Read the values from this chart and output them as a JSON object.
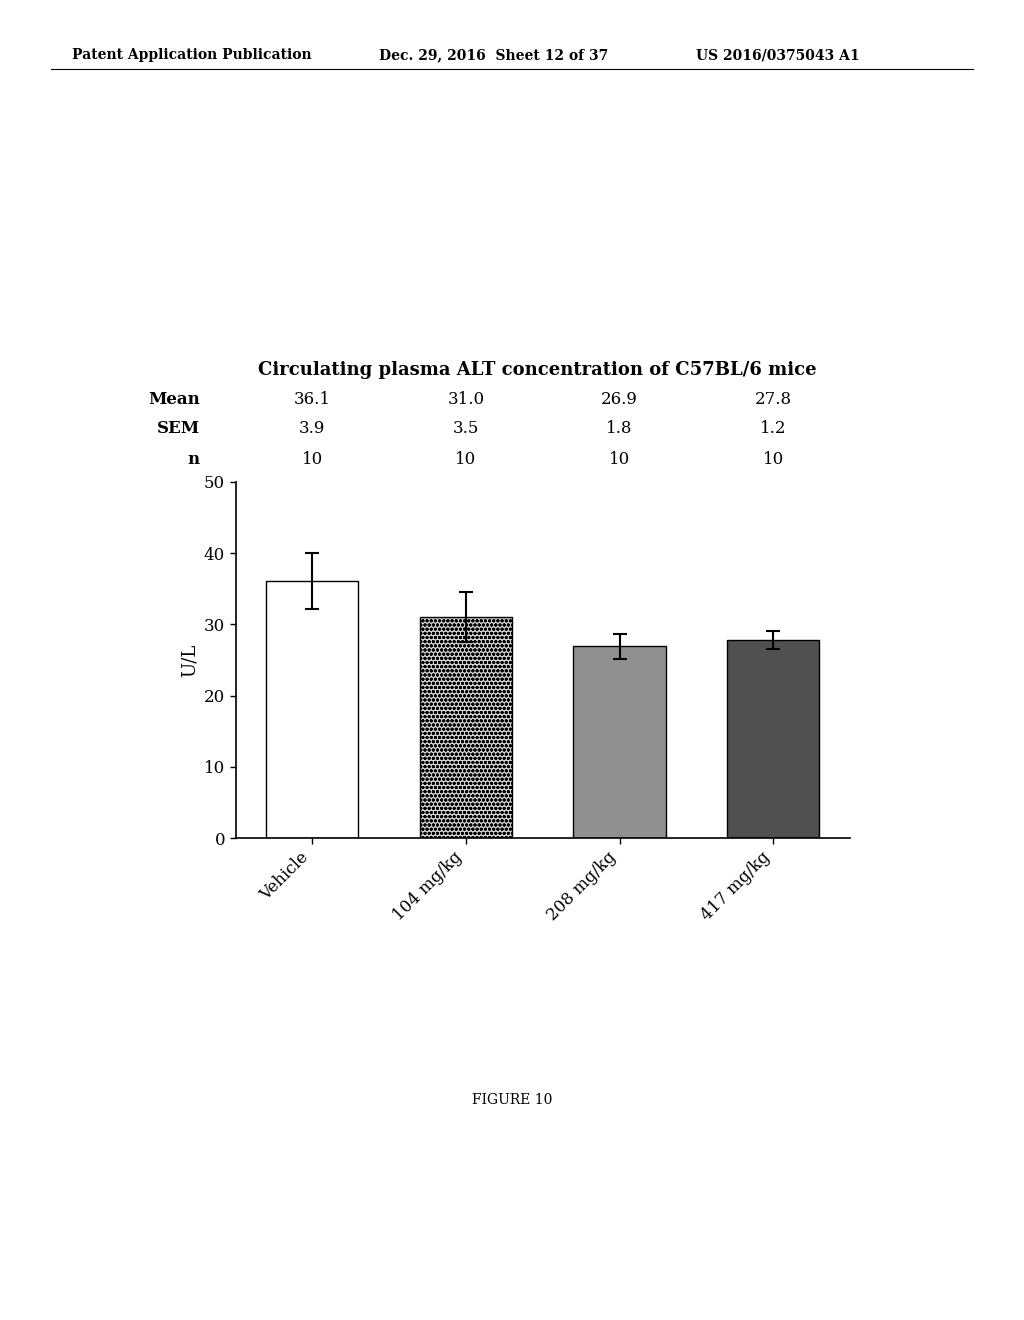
{
  "title": "Circulating plasma ALT concentration of C57BL/6 mice",
  "categories": [
    "Vehicle",
    "104 mg/kg",
    "208 mg/kg",
    "417 mg/kg"
  ],
  "means": [
    36.1,
    31.0,
    26.9,
    27.8
  ],
  "sems": [
    3.9,
    3.5,
    1.8,
    1.2
  ],
  "n_values": [
    10,
    10,
    10,
    10
  ],
  "ylabel": "U/L",
  "ylim": [
    0,
    50
  ],
  "yticks": [
    0,
    10,
    20,
    30,
    40,
    50
  ],
  "table_labels": [
    "Mean",
    "SEM",
    "n"
  ],
  "mean_values_str": [
    "36.1",
    "31.0",
    "26.9",
    "27.8"
  ],
  "sem_values_str": [
    "3.9",
    "3.5",
    "1.8",
    "1.2"
  ],
  "n_values_str": [
    "10",
    "10",
    "10",
    "10"
  ],
  "figure_label": "FIGURE 10",
  "header_left": "Patent Application Publication",
  "header_mid": "Dec. 29, 2016  Sheet 12 of 37",
  "header_right": "US 2016/0375043 A1",
  "background_color": "#ffffff",
  "bar_colors": [
    "#ffffff",
    "#c8c8c8",
    "#8a8a8a",
    "#484848"
  ],
  "bar_edgecolor": "#000000",
  "title_fontsize": 13,
  "table_fontsize": 12,
  "axis_fontsize": 12,
  "header_fontsize": 10
}
